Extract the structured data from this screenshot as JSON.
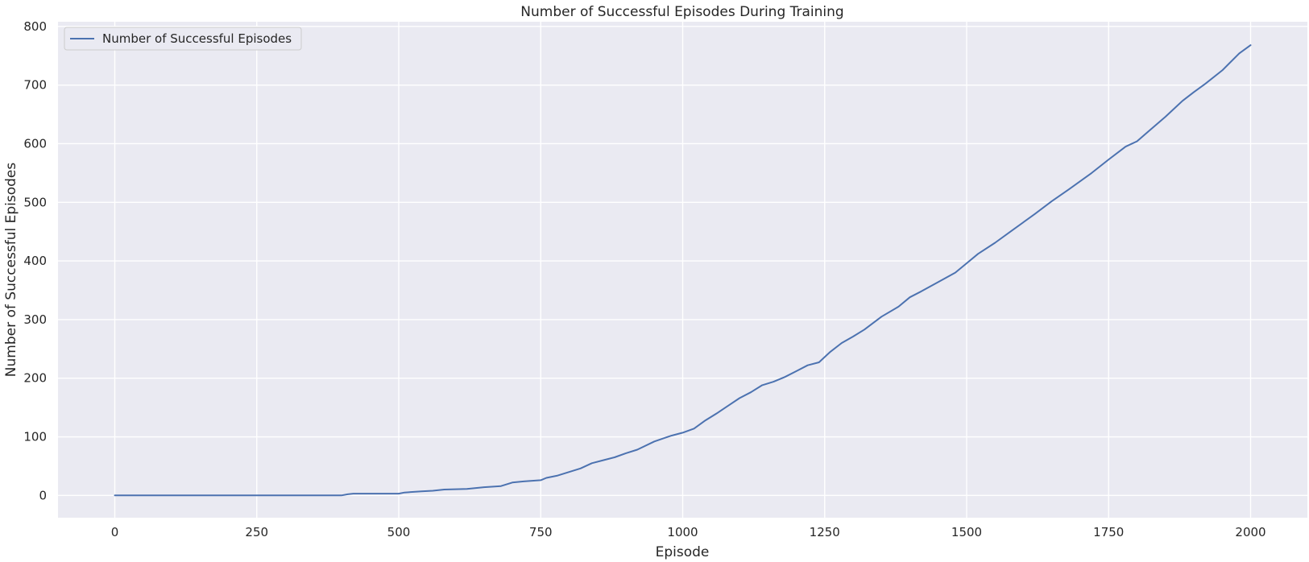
{
  "chart_data": {
    "type": "line",
    "title": "Number of Successful Episodes During Training",
    "xlabel": "Episode",
    "ylabel": "Number of Successful Episodes",
    "xlim": [
      -100,
      2100
    ],
    "ylim": [
      -38,
      808
    ],
    "x_ticks": [
      0,
      250,
      500,
      750,
      1000,
      1250,
      1500,
      1750,
      2000
    ],
    "y_ticks": [
      0,
      100,
      200,
      300,
      400,
      500,
      600,
      700,
      800
    ],
    "grid": true,
    "legend": {
      "position": "top-left",
      "entries": [
        "Number of Successful Episodes"
      ]
    },
    "series": [
      {
        "name": "Number of Successful Episodes",
        "color": "#4c72b0",
        "x": [
          0,
          100,
          200,
          300,
          399,
          410,
          420,
          500,
          510,
          540,
          560,
          580,
          620,
          650,
          680,
          700,
          720,
          750,
          760,
          780,
          800,
          820,
          840,
          860,
          880,
          900,
          920,
          950,
          980,
          1000,
          1020,
          1040,
          1060,
          1080,
          1100,
          1120,
          1140,
          1160,
          1180,
          1200,
          1220,
          1240,
          1260,
          1280,
          1300,
          1320,
          1350,
          1380,
          1400,
          1420,
          1450,
          1480,
          1500,
          1520,
          1550,
          1580,
          1600,
          1620,
          1650,
          1680,
          1700,
          1720,
          1750,
          1780,
          1800,
          1820,
          1850,
          1880,
          1900,
          1920,
          1950,
          1980,
          2000
        ],
        "y": [
          0,
          0,
          0,
          0,
          0,
          2,
          3,
          3,
          5,
          7,
          8,
          10,
          11,
          14,
          16,
          22,
          24,
          26,
          30,
          34,
          40,
          46,
          55,
          60,
          65,
          72,
          78,
          92,
          102,
          107,
          114,
          128,
          140,
          153,
          166,
          176,
          188,
          194,
          202,
          212,
          222,
          227,
          245,
          260,
          271,
          283,
          305,
          322,
          338,
          348,
          364,
          380,
          396,
          412,
          431,
          452,
          466,
          480,
          502,
          522,
          536,
          550,
          573,
          595,
          604,
          621,
          646,
          673,
          688,
          702,
          725,
          754,
          768
        ]
      }
    ]
  }
}
